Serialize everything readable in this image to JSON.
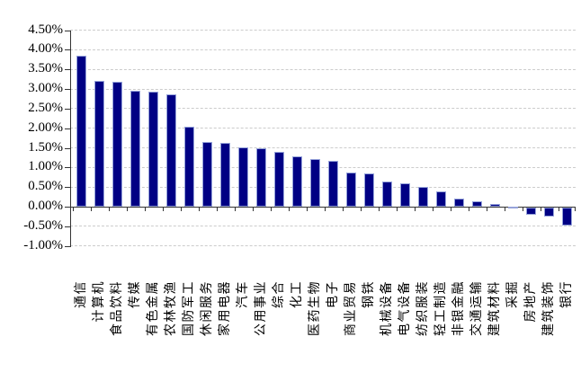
{
  "chart_data": {
    "type": "bar",
    "title": "",
    "xlabel": "",
    "ylabel": "",
    "categories": [
      "通信",
      "计算机",
      "食品饮料",
      "传媒",
      "有色金属",
      "农林牧渔",
      "国防军工",
      "休闲服务",
      "家用电器",
      "汽车",
      "公用事业",
      "综合",
      "化工",
      "医药生物",
      "电子",
      "商业贸易",
      "钢铁",
      "机械设备",
      "电气设备",
      "纺织服装",
      "轻工制造",
      "非银金融",
      "交通运输",
      "建筑材料",
      "采掘",
      "房地产",
      "建筑装饰",
      "银行"
    ],
    "values": [
      3.85,
      3.2,
      3.18,
      2.95,
      2.93,
      2.86,
      2.03,
      1.66,
      1.62,
      1.51,
      1.5,
      1.39,
      1.29,
      1.22,
      1.16,
      0.86,
      0.84,
      0.65,
      0.59,
      0.51,
      0.38,
      0.2,
      0.14,
      0.06,
      0.01,
      -0.18,
      -0.22,
      -0.46
    ],
    "values_unit": "%",
    "ylim": [
      -1.0,
      4.5
    ],
    "y_tick_step": 0.5,
    "y_tick_labels": [
      "4.50%",
      "4.00%",
      "3.50%",
      "3.00%",
      "2.50%",
      "2.00%",
      "1.50%",
      "1.00%",
      "0.50%",
      "0.00%",
      "-0.50%",
      "-1.00%"
    ],
    "grid": "horizontal-dashed",
    "legend": "none",
    "colors": {
      "bar_fill": "#000084",
      "bar_border": "#96a3da",
      "gridline": "#cccccc",
      "axis": "#333333",
      "text": "#000000",
      "background": "#ffffff"
    }
  }
}
